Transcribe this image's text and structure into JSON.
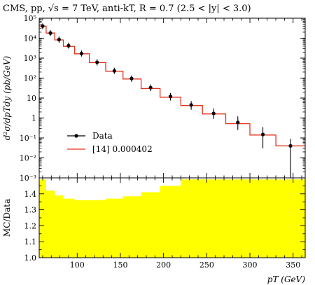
{
  "title": "CMS, pp, √s = 7 TeV, anti-kT, R = 0.7 (2.5 < |y| < 3.0)",
  "chart_data": [
    {
      "type": "scatter",
      "panel": "main",
      "ylabel": "d²σ/dpTdy (pb/GeV)",
      "yscale": "log",
      "ylim": [
        0.001,
        100000
      ],
      "xlim": [
        56,
        364
      ],
      "y_ticks": [
        "10⁻³",
        "10⁻²",
        "10⁻¹",
        "1",
        "10",
        "10²",
        "10³",
        "10⁴",
        "10⁵"
      ],
      "bin_edges": [
        56,
        64,
        74,
        84,
        97,
        114,
        133,
        153,
        174,
        196,
        220,
        245,
        272,
        300,
        330,
        364
      ],
      "series": [
        {
          "name": "Data",
          "style": "points-with-errors",
          "color": "#000000",
          "x": [
            60,
            69,
            79,
            90,
            105,
            123,
            143,
            163,
            185,
            208,
            232,
            258,
            286,
            315,
            347
          ],
          "y": [
            40000,
            18000,
            8500,
            4200,
            1700,
            620,
            230,
            95,
            33,
            12,
            4.5,
            1.7,
            0.6,
            0.15,
            0.04
          ],
          "y_low": [
            28000,
            13000,
            6000,
            3000,
            1200,
            430,
            160,
            65,
            22,
            7.5,
            2.6,
            0.9,
            0.25,
            0.03,
            0.0009
          ],
          "y_high": [
            55000,
            25000,
            12000,
            6000,
            2400,
            880,
            330,
            135,
            48,
            18,
            7,
            3,
            1.2,
            0.35,
            0.09
          ]
        },
        {
          "name": "[14] 0.000402",
          "style": "step",
          "color": "#e8321e",
          "y": [
            40000,
            18000,
            8200,
            3900,
            1650,
            600,
            220,
            90,
            30,
            11,
            4.2,
            1.6,
            0.52,
            0.14,
            0.04
          ]
        }
      ]
    },
    {
      "type": "area",
      "panel": "ratio",
      "ylabel": "MC/Data",
      "xlabel": "pT (GeV)",
      "ylim": [
        1.0,
        1.5
      ],
      "xlim": [
        56,
        364
      ],
      "x_ticks": [
        "100",
        "150",
        "200",
        "250",
        "300",
        "350"
      ],
      "y_ticks": [
        "1.0",
        "1.1",
        "1.2",
        "1.3",
        "1.4"
      ],
      "fill_color": "#ffff00",
      "bin_edges": [
        56,
        64,
        74,
        84,
        97,
        114,
        133,
        153,
        174,
        196,
        220,
        245,
        272,
        300,
        330,
        364
      ],
      "values": [
        1.49,
        1.42,
        1.39,
        1.37,
        1.36,
        1.36,
        1.37,
        1.385,
        1.41,
        1.45,
        1.49,
        1.49,
        1.49,
        1.49,
        1.49
      ]
    }
  ]
}
